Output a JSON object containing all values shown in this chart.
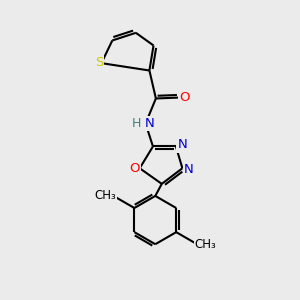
{
  "background_color": "#ebebeb",
  "atom_colors": {
    "C": "#000000",
    "N": "#0000cc",
    "O": "#ff0000",
    "S": "#cccc00",
    "H": "#408080"
  },
  "bond_color": "#000000",
  "bond_lw": 1.5
}
